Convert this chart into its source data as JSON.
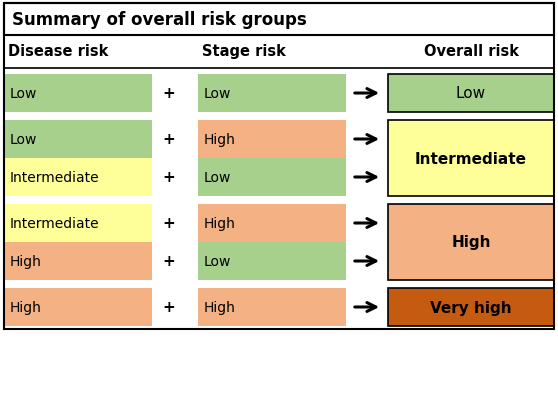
{
  "title": "Summary of overall risk groups",
  "col_headers": [
    "Disease risk",
    "Stage risk",
    "Overall risk"
  ],
  "color_green": "#a8d08d",
  "color_yellow": "#ffff99",
  "color_orange": "#f4b183",
  "color_dark_orange": "#c55a11",
  "background": "#ffffff",
  "rows": [
    {
      "disease_label": "Low",
      "disease_color": "#a8d08d",
      "stage_label": "Low",
      "stage_color": "#a8d08d"
    },
    {
      "disease_label": "Low",
      "disease_color": "#a8d08d",
      "stage_label": "High",
      "stage_color": "#f4b183"
    },
    {
      "disease_label": "Intermediate",
      "disease_color": "#ffff99",
      "stage_label": "Low",
      "stage_color": "#a8d08d"
    },
    {
      "disease_label": "Intermediate",
      "disease_color": "#ffff99",
      "stage_label": "High",
      "stage_color": "#f4b183"
    },
    {
      "disease_label": "High",
      "disease_color": "#f4b183",
      "stage_label": "Low",
      "stage_color": "#a8d08d"
    },
    {
      "disease_label": "High",
      "disease_color": "#f4b183",
      "stage_label": "High",
      "stage_color": "#f4b183"
    }
  ],
  "group_spans": [
    {
      "rows": [
        0
      ],
      "label": "Low",
      "color": "#a8d08d",
      "bold": false
    },
    {
      "rows": [
        1,
        2
      ],
      "label": "Intermediate",
      "color": "#ffff99",
      "bold": true
    },
    {
      "rows": [
        3,
        4
      ],
      "label": "High",
      "color": "#f4b183",
      "bold": true
    },
    {
      "rows": [
        5
      ],
      "label": "Very high",
      "color": "#c55a11",
      "bold": true
    }
  ]
}
